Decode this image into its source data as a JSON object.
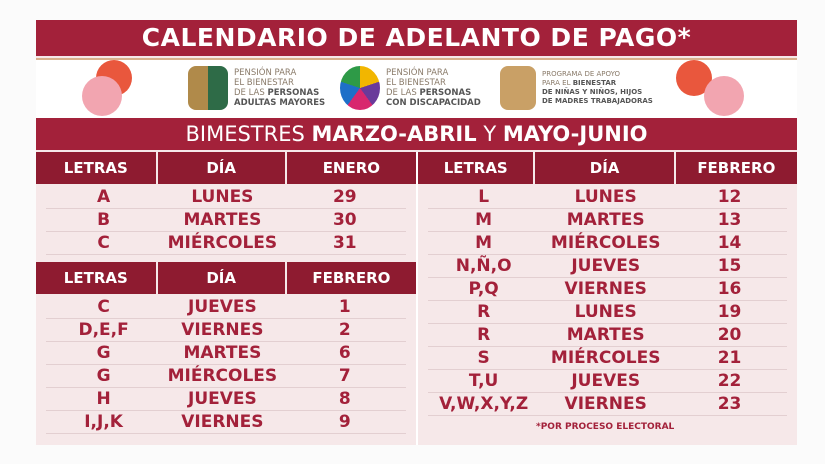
{
  "title": "CALENDARIO DE ADELANTO DE PAGO*",
  "programs": [
    {
      "l1": "PENSIÓN PARA",
      "l2": "EL BIENESTAR",
      "l3": "DE LAS ",
      "l3b": "PERSONAS",
      "l4": "ADULTAS MAYORES",
      "icon": "elderly-couple-heart-icon"
    },
    {
      "l1": "PENSIÓN PARA",
      "l2": "EL BIENESTAR",
      "l3": "DE  LAS ",
      "l3b": "PERSONAS",
      "l4": "CON DISCAPACIDAD",
      "icon": "disability-circles-heart-icon"
    },
    {
      "l1": "PROGRAMA DE APOYO",
      "l2": "PARA EL ",
      "l2b": "BIENESTAR",
      "l3": "DE NIÑAS Y NIÑOS, HIJOS",
      "l4": "DE MADRES TRABAJADORAS",
      "icon": "mother-children-heart-icon"
    }
  ],
  "subtitle": {
    "a": "BIMESTRES ",
    "b": "MARZO-ABRIL",
    "c": " Y ",
    "d": "MAYO-JUNIO"
  },
  "table1": {
    "headers": [
      "LETRAS",
      "DÍA",
      "ENERO"
    ],
    "rows": [
      [
        "A",
        "LUNES",
        "29"
      ],
      [
        "B",
        "MARTES",
        "30"
      ],
      [
        "C",
        "MIÉRCOLES",
        "31"
      ]
    ]
  },
  "table2": {
    "headers": [
      "LETRAS",
      "DÍA",
      "FEBRERO"
    ],
    "rows": [
      [
        "C",
        "JUEVES",
        "1"
      ],
      [
        "D,E,F",
        "VIERNES",
        "2"
      ],
      [
        "G",
        "MARTES",
        "6"
      ],
      [
        "G",
        "MIÉRCOLES",
        "7"
      ],
      [
        "H",
        "JUEVES",
        "8"
      ],
      [
        "I,J,K",
        "VIERNES",
        "9"
      ]
    ]
  },
  "table3": {
    "headers": [
      "LETRAS",
      "DÍA",
      "FEBRERO"
    ],
    "rows": [
      [
        "L",
        "LUNES",
        "12"
      ],
      [
        "M",
        "MARTES",
        "13"
      ],
      [
        "M",
        "MIÉRCOLES",
        "14"
      ],
      [
        "N,Ñ,O",
        "JUEVES",
        "15"
      ],
      [
        "P,Q",
        "VIERNES",
        "16"
      ],
      [
        "R",
        "LUNES",
        "19"
      ],
      [
        "R",
        "MARTES",
        "20"
      ],
      [
        "S",
        "MIÉRCOLES",
        "21"
      ],
      [
        "T,U",
        "JUEVES",
        "22"
      ],
      [
        "V,W,X,Y,Z",
        "VIERNES",
        "23"
      ]
    ]
  },
  "footnote": "*POR PROCESO ELECTORAL",
  "colors": {
    "primary": "#a3213a",
    "header": "#8e1b30",
    "background": "#f6e8e9"
  }
}
